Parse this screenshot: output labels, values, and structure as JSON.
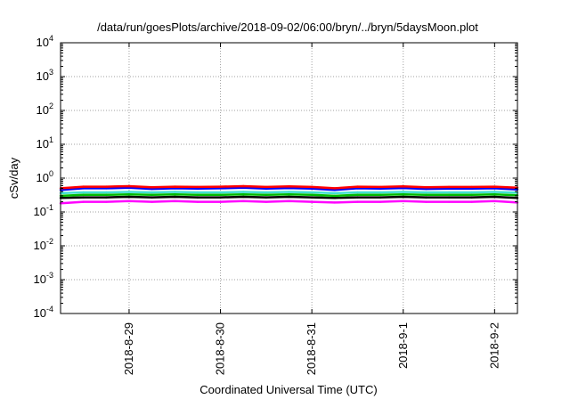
{
  "chart_data": {
    "type": "line",
    "title": "/data/run/goesPlots/archive/2018-09-02/06:00/bryn/../bryn/5daysMoon.plot",
    "xlabel": "Coordinated Universal Time (UTC)",
    "ylabel": "cSv/day",
    "y_scale": "log",
    "ylim": [
      0.0001,
      10000
    ],
    "y_ticks": [
      {
        "value": 0.0001,
        "base": "10",
        "exp": "-4"
      },
      {
        "value": 0.001,
        "base": "10",
        "exp": "-3"
      },
      {
        "value": 0.01,
        "base": "10",
        "exp": "-2"
      },
      {
        "value": 0.1,
        "base": "10",
        "exp": "-1"
      },
      {
        "value": 1,
        "base": "10",
        "exp": "0"
      },
      {
        "value": 10,
        "base": "10",
        "exp": "1"
      },
      {
        "value": 100,
        "base": "10",
        "exp": "2"
      },
      {
        "value": 1000,
        "base": "10",
        "exp": "3"
      },
      {
        "value": 10000,
        "base": "10",
        "exp": "4"
      }
    ],
    "xlim": [
      "2018-08-28 06:00",
      "2018-09-02 06:00"
    ],
    "x_ticks": [
      {
        "value": "2018-08-29 00:00",
        "label": "2018-8-29"
      },
      {
        "value": "2018-08-30 00:00",
        "label": "2018-8-30"
      },
      {
        "value": "2018-08-31 00:00",
        "label": "2018-8-31"
      },
      {
        "value": "2018-09-01 00:00",
        "label": "2018-9-1"
      },
      {
        "value": "2018-09-02 00:00",
        "label": "2018-9-2"
      }
    ],
    "grid": true,
    "x": [
      "2018-08-28 06:00",
      "2018-08-28 12:00",
      "2018-08-28 18:00",
      "2018-08-29 00:00",
      "2018-08-29 06:00",
      "2018-08-29 12:00",
      "2018-08-29 18:00",
      "2018-08-30 00:00",
      "2018-08-30 06:00",
      "2018-08-30 12:00",
      "2018-08-30 18:00",
      "2018-08-31 00:00",
      "2018-08-31 06:00",
      "2018-08-31 12:00",
      "2018-08-31 18:00",
      "2018-09-01 00:00",
      "2018-09-01 06:00",
      "2018-09-01 12:00",
      "2018-09-01 18:00",
      "2018-09-02 00:00",
      "2018-09-02 06:00"
    ],
    "series": [
      {
        "color": "#ff00ff",
        "values": [
          0.18,
          0.2,
          0.2,
          0.21,
          0.2,
          0.21,
          0.2,
          0.2,
          0.21,
          0.2,
          0.21,
          0.2,
          0.19,
          0.2,
          0.2,
          0.21,
          0.2,
          0.2,
          0.2,
          0.21,
          0.19
        ]
      },
      {
        "color": "#000000",
        "values": [
          0.26,
          0.27,
          0.27,
          0.28,
          0.27,
          0.28,
          0.27,
          0.27,
          0.28,
          0.27,
          0.28,
          0.27,
          0.26,
          0.27,
          0.27,
          0.28,
          0.27,
          0.27,
          0.27,
          0.28,
          0.26
        ]
      },
      {
        "color": "#00bb00",
        "values": [
          0.3,
          0.32,
          0.32,
          0.33,
          0.32,
          0.33,
          0.32,
          0.32,
          0.33,
          0.32,
          0.33,
          0.32,
          0.3,
          0.32,
          0.32,
          0.33,
          0.32,
          0.32,
          0.32,
          0.33,
          0.31
        ]
      },
      {
        "color": "#40e0d0",
        "values": [
          0.36,
          0.38,
          0.38,
          0.39,
          0.38,
          0.39,
          0.38,
          0.38,
          0.39,
          0.38,
          0.39,
          0.38,
          0.36,
          0.38,
          0.38,
          0.39,
          0.38,
          0.38,
          0.38,
          0.39,
          0.37
        ]
      },
      {
        "color": "#0000ff",
        "values": [
          0.45,
          0.5,
          0.5,
          0.52,
          0.48,
          0.5,
          0.49,
          0.5,
          0.52,
          0.49,
          0.51,
          0.49,
          0.45,
          0.5,
          0.49,
          0.51,
          0.48,
          0.49,
          0.49,
          0.5,
          0.46
        ]
      },
      {
        "color": "#ff0000",
        "values": [
          0.5,
          0.56,
          0.56,
          0.58,
          0.54,
          0.56,
          0.55,
          0.56,
          0.58,
          0.55,
          0.57,
          0.55,
          0.5,
          0.56,
          0.55,
          0.57,
          0.54,
          0.55,
          0.55,
          0.56,
          0.52
        ]
      }
    ]
  }
}
